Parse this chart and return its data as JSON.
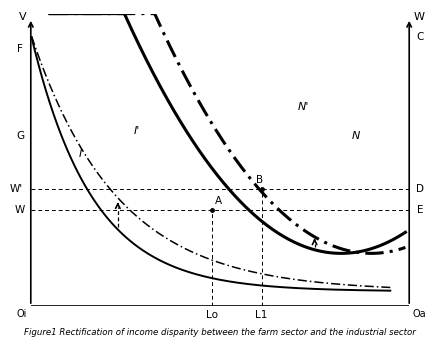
{
  "title": "Figure1 Rectification of income disparity between the farm sector and the industrial sector",
  "xlim": [
    0,
    10
  ],
  "ylim": [
    0,
    10
  ],
  "Lo_x": 4.8,
  "L1_x": 6.1,
  "W_y": 3.3,
  "Wprime_y": 4.0,
  "F_y": 8.8,
  "G_y": 5.8,
  "C_y": 9.2,
  "label_color": "#000000"
}
